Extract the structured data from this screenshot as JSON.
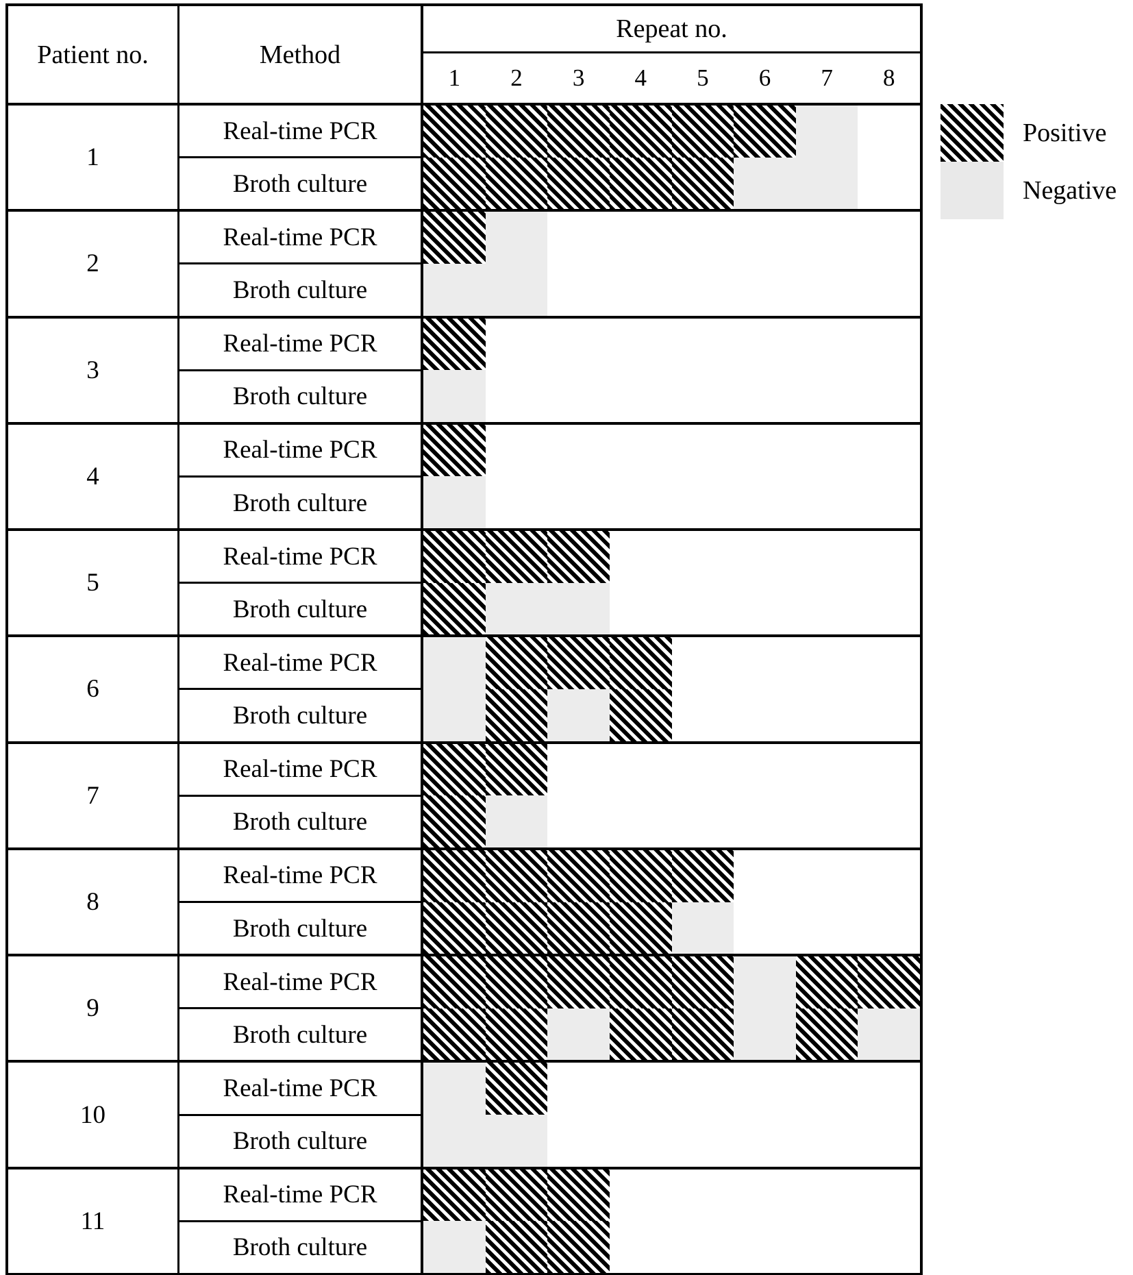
{
  "header": {
    "patient_col": "Patient no.",
    "method_col": "Method",
    "repeat_col": "Repeat no."
  },
  "legend": {
    "positive_label": "Positive",
    "negative_label": "Negative"
  },
  "colors": {
    "positive_hatch": "#000000",
    "negative_fill": "#ececec",
    "border": "#000000",
    "background": "#ffffff"
  },
  "chart_data": {
    "type": "heatmap",
    "x_label": "Repeat no.",
    "x_ticks": [
      "1",
      "2",
      "3",
      "4",
      "5",
      "6",
      "7",
      "8"
    ],
    "legend_entries": [
      {
        "label": "Positive",
        "style": "black-diagonal-hatch"
      },
      {
        "label": "Negative",
        "style": "light-gray-fill"
      }
    ],
    "value_meaning": "positive = hatched cell, negative = gray cell, null = repeat not performed (blank)",
    "rows": [
      {
        "patient": "1",
        "method": "Real-time PCR",
        "results": [
          "positive",
          "positive",
          "positive",
          "positive",
          "positive",
          "positive",
          "negative",
          null
        ]
      },
      {
        "patient": "1",
        "method": "Broth culture",
        "results": [
          "positive",
          "positive",
          "positive",
          "positive",
          "positive",
          "negative",
          "negative",
          null
        ]
      },
      {
        "patient": "2",
        "method": "Real-time PCR",
        "results": [
          "positive",
          "negative",
          null,
          null,
          null,
          null,
          null,
          null
        ]
      },
      {
        "patient": "2",
        "method": "Broth culture",
        "results": [
          "negative",
          "negative",
          null,
          null,
          null,
          null,
          null,
          null
        ]
      },
      {
        "patient": "3",
        "method": "Real-time PCR",
        "results": [
          "positive",
          null,
          null,
          null,
          null,
          null,
          null,
          null
        ]
      },
      {
        "patient": "3",
        "method": "Broth culture",
        "results": [
          "negative",
          null,
          null,
          null,
          null,
          null,
          null,
          null
        ]
      },
      {
        "patient": "4",
        "method": "Real-time PCR",
        "results": [
          "positive",
          null,
          null,
          null,
          null,
          null,
          null,
          null
        ]
      },
      {
        "patient": "4",
        "method": "Broth culture",
        "results": [
          "negative",
          null,
          null,
          null,
          null,
          null,
          null,
          null
        ]
      },
      {
        "patient": "5",
        "method": "Real-time PCR",
        "results": [
          "positive",
          "positive",
          "positive",
          null,
          null,
          null,
          null,
          null
        ]
      },
      {
        "patient": "5",
        "method": "Broth culture",
        "results": [
          "positive",
          "negative",
          "negative",
          null,
          null,
          null,
          null,
          null
        ]
      },
      {
        "patient": "6",
        "method": "Real-time PCR",
        "results": [
          "negative",
          "positive",
          "positive",
          "positive",
          null,
          null,
          null,
          null
        ]
      },
      {
        "patient": "6",
        "method": "Broth culture",
        "results": [
          "negative",
          "positive",
          "negative",
          "positive",
          null,
          null,
          null,
          null
        ]
      },
      {
        "patient": "7",
        "method": "Real-time PCR",
        "results": [
          "positive",
          "positive",
          null,
          null,
          null,
          null,
          null,
          null
        ]
      },
      {
        "patient": "7",
        "method": "Broth culture",
        "results": [
          "positive",
          "negative",
          null,
          null,
          null,
          null,
          null,
          null
        ]
      },
      {
        "patient": "8",
        "method": "Real-time PCR",
        "results": [
          "positive",
          "positive",
          "positive",
          "positive",
          "positive",
          null,
          null,
          null
        ]
      },
      {
        "patient": "8",
        "method": "Broth culture",
        "results": [
          "positive",
          "positive",
          "positive",
          "positive",
          "negative",
          null,
          null,
          null
        ]
      },
      {
        "patient": "9",
        "method": "Real-time PCR",
        "results": [
          "positive",
          "positive",
          "positive",
          "positive",
          "positive",
          "negative",
          "positive",
          "positive"
        ]
      },
      {
        "patient": "9",
        "method": "Broth culture",
        "results": [
          "positive",
          "positive",
          "negative",
          "positive",
          "positive",
          "negative",
          "positive",
          "negative"
        ]
      },
      {
        "patient": "10",
        "method": "Real-time PCR",
        "results": [
          "negative",
          "positive",
          null,
          null,
          null,
          null,
          null,
          null
        ]
      },
      {
        "patient": "10",
        "method": "Broth culture",
        "results": [
          "negative",
          "negative",
          null,
          null,
          null,
          null,
          null,
          null
        ]
      },
      {
        "patient": "11",
        "method": "Real-time PCR",
        "results": [
          "positive",
          "positive",
          "positive",
          null,
          null,
          null,
          null,
          null
        ]
      },
      {
        "patient": "11",
        "method": "Broth culture",
        "results": [
          "negative",
          "positive",
          "positive",
          null,
          null,
          null,
          null,
          null
        ]
      }
    ]
  }
}
